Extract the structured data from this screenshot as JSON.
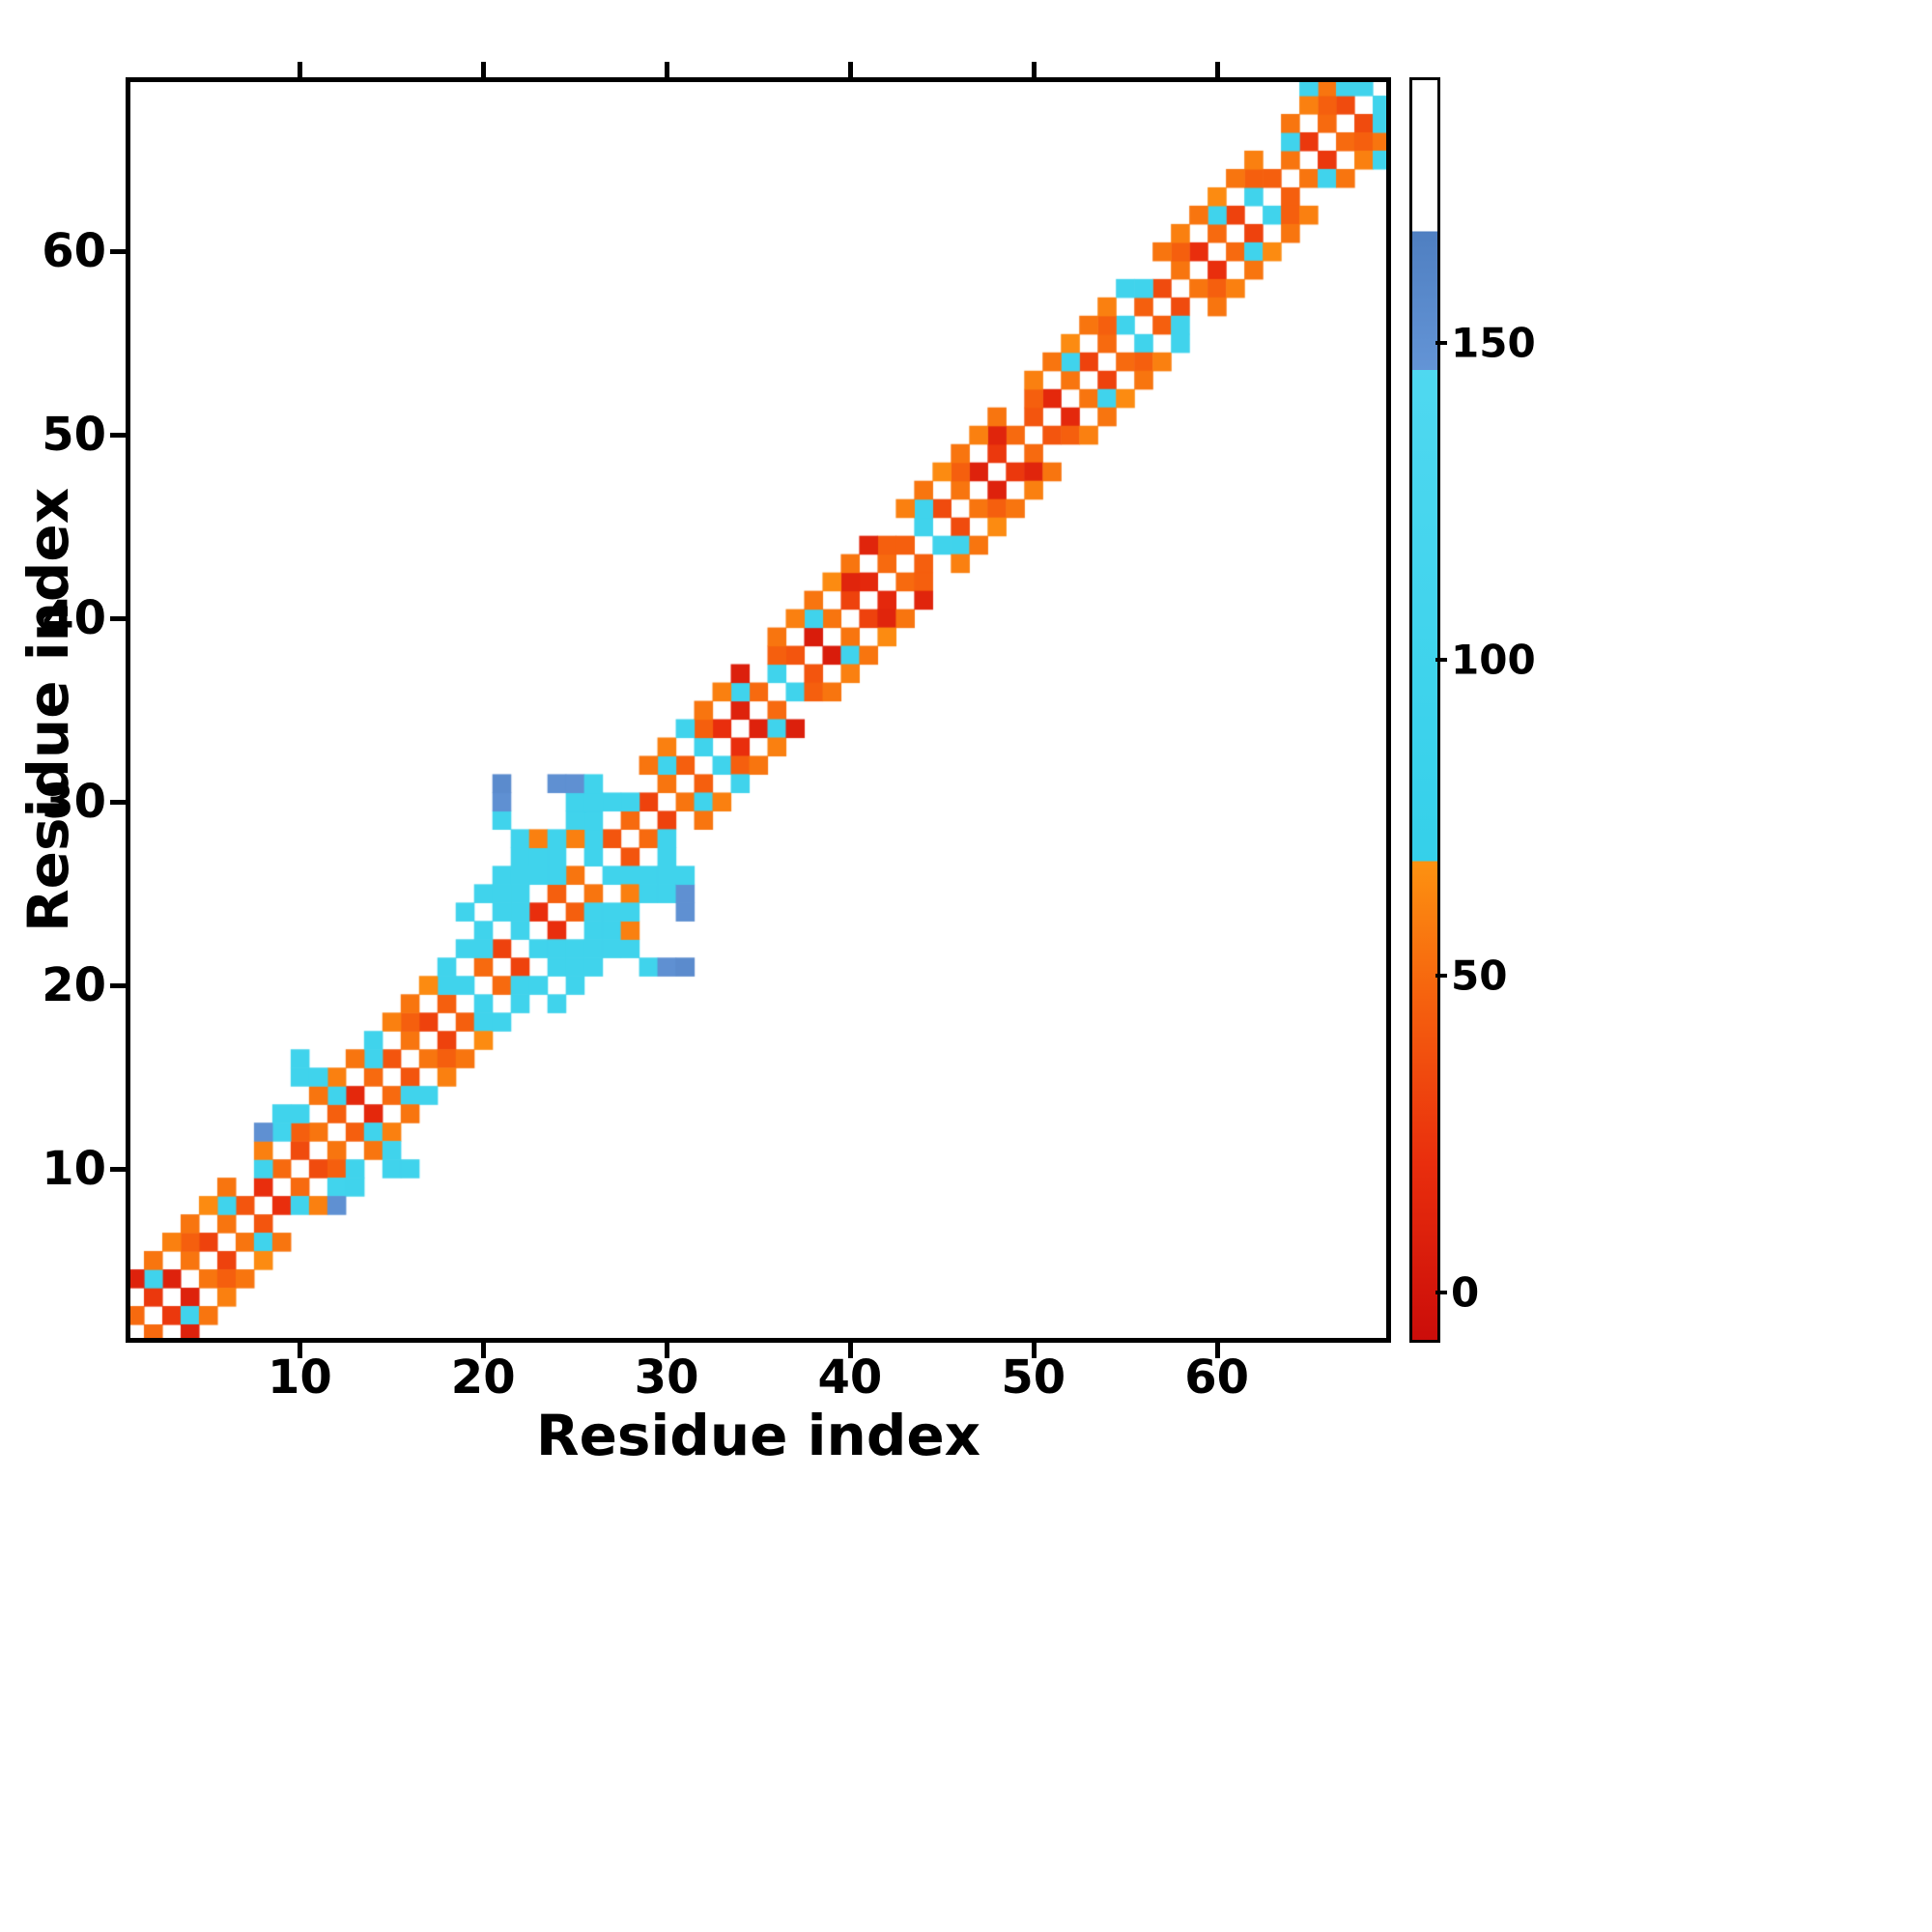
{
  "chart_data": {
    "type": "heatmap",
    "title": "",
    "xlabel": "Residue index",
    "ylabel": "Residue index",
    "n_residues": 69,
    "x_ticks": [
      10,
      20,
      30,
      40,
      50,
      60
    ],
    "y_ticks": [
      10,
      20,
      30,
      40,
      50,
      60
    ],
    "grid": false,
    "background": "#ffffff",
    "symmetric": true,
    "colorbar": {
      "ticks": [
        0,
        50,
        100,
        150
      ],
      "vmin": -8,
      "vmax": 192,
      "position": "right"
    },
    "colormap_stops": [
      [
        -8,
        "#cb0d0a"
      ],
      [
        20,
        "#e92e0d"
      ],
      [
        45,
        "#f55f0e"
      ],
      [
        68,
        "#fd9211"
      ],
      [
        68.01,
        "#35d0ea"
      ],
      [
        146,
        "#4fd8f0"
      ],
      [
        146.01,
        "#6394d6"
      ],
      [
        168,
        "#4f7fc1"
      ],
      [
        168.01,
        "#ffffff"
      ],
      [
        192,
        "#ffffff"
      ]
    ],
    "cells": [
      [
        1,
        2,
        50
      ],
      [
        2,
        3,
        25
      ],
      [
        3,
        4,
        10
      ],
      [
        4,
        5,
        55
      ],
      [
        5,
        6,
        30
      ],
      [
        6,
        7,
        55
      ],
      [
        7,
        8,
        40
      ],
      [
        8,
        9,
        20
      ],
      [
        9,
        10,
        50
      ],
      [
        10,
        11,
        35
      ],
      [
        11,
        12,
        55
      ],
      [
        12,
        13,
        45
      ],
      [
        13,
        14,
        15
      ],
      [
        14,
        15,
        50
      ],
      [
        15,
        16,
        40
      ],
      [
        16,
        17,
        55
      ],
      [
        17,
        18,
        30
      ],
      [
        18,
        19,
        45
      ],
      [
        19,
        20,
        100
      ],
      [
        20,
        21,
        50
      ],
      [
        21,
        22,
        30
      ],
      [
        22,
        23,
        100
      ],
      [
        23,
        24,
        20
      ],
      [
        24,
        25,
        45
      ],
      [
        25,
        26,
        55
      ],
      [
        26,
        27,
        100
      ],
      [
        27,
        28,
        40
      ],
      [
        28,
        29,
        50
      ],
      [
        29,
        30,
        30
      ],
      [
        30,
        31,
        55
      ],
      [
        31,
        32,
        45
      ],
      [
        32,
        33,
        100
      ],
      [
        33,
        34,
        20
      ],
      [
        34,
        35,
        10
      ],
      [
        35,
        36,
        50
      ],
      [
        36,
        37,
        100
      ],
      [
        37,
        38,
        40
      ],
      [
        38,
        39,
        5
      ],
      [
        39,
        40,
        55
      ],
      [
        40,
        41,
        30
      ],
      [
        41,
        42,
        15
      ],
      [
        42,
        43,
        50
      ],
      [
        43,
        44,
        45
      ],
      [
        44,
        45,
        100
      ],
      [
        45,
        46,
        35
      ],
      [
        46,
        47,
        55
      ],
      [
        47,
        48,
        10
      ],
      [
        48,
        49,
        25
      ],
      [
        49,
        50,
        50
      ],
      [
        50,
        51,
        40
      ],
      [
        51,
        52,
        15
      ],
      [
        52,
        53,
        55
      ],
      [
        53,
        54,
        30
      ],
      [
        54,
        55,
        50
      ],
      [
        55,
        56,
        100
      ],
      [
        56,
        57,
        45
      ],
      [
        57,
        58,
        35
      ],
      [
        58,
        59,
        55
      ],
      [
        59,
        60,
        20
      ],
      [
        60,
        61,
        50
      ],
      [
        61,
        62,
        30
      ],
      [
        62,
        63,
        100
      ],
      [
        63,
        64,
        45
      ],
      [
        64,
        65,
        55
      ],
      [
        65,
        66,
        25
      ],
      [
        66,
        67,
        50
      ],
      [
        67,
        68,
        35
      ],
      [
        68,
        69,
        100
      ],
      [
        2,
        4,
        100
      ],
      [
        4,
        6,
        45
      ],
      [
        6,
        8,
        100
      ],
      [
        8,
        10,
        100
      ],
      [
        10,
        12,
        45
      ],
      [
        12,
        14,
        100
      ],
      [
        14,
        16,
        100
      ],
      [
        16,
        18,
        45
      ],
      [
        18,
        20,
        100
      ],
      [
        20,
        22,
        100
      ],
      [
        22,
        24,
        100
      ],
      [
        24,
        26,
        100
      ],
      [
        26,
        28,
        100
      ],
      [
        28,
        30,
        100
      ],
      [
        30,
        32,
        100
      ],
      [
        32,
        34,
        45
      ],
      [
        34,
        36,
        100
      ],
      [
        36,
        38,
        45
      ],
      [
        38,
        40,
        100
      ],
      [
        40,
        42,
        12
      ],
      [
        42,
        44,
        45
      ],
      [
        44,
        46,
        100
      ],
      [
        46,
        48,
        45
      ],
      [
        48,
        50,
        12
      ],
      [
        50,
        52,
        45
      ],
      [
        52,
        54,
        100
      ],
      [
        54,
        56,
        45
      ],
      [
        56,
        58,
        100
      ],
      [
        58,
        60,
        45
      ],
      [
        60,
        62,
        100
      ],
      [
        62,
        64,
        45
      ],
      [
        64,
        66,
        100
      ],
      [
        66,
        68,
        45
      ],
      [
        1,
        4,
        10
      ],
      [
        2,
        5,
        55
      ],
      [
        3,
        6,
        60
      ],
      [
        4,
        7,
        55
      ],
      [
        5,
        8,
        65
      ],
      [
        6,
        9,
        55
      ],
      [
        8,
        11,
        60
      ],
      [
        9,
        12,
        105
      ],
      [
        10,
        13,
        100
      ],
      [
        11,
        14,
        55
      ],
      [
        12,
        15,
        60
      ],
      [
        13,
        16,
        55
      ],
      [
        15,
        18,
        60
      ],
      [
        16,
        19,
        55
      ],
      [
        17,
        20,
        65
      ],
      [
        18,
        21,
        100
      ],
      [
        19,
        22,
        100
      ],
      [
        20,
        23,
        100
      ],
      [
        22,
        25,
        100
      ],
      [
        23,
        26,
        100
      ],
      [
        24,
        27,
        100
      ],
      [
        25,
        28,
        60
      ],
      [
        26,
        29,
        100
      ],
      [
        27,
        30,
        100
      ],
      [
        29,
        32,
        55
      ],
      [
        30,
        33,
        60
      ],
      [
        31,
        34,
        100
      ],
      [
        32,
        35,
        55
      ],
      [
        33,
        36,
        60
      ],
      [
        34,
        37,
        8
      ],
      [
        36,
        39,
        55
      ],
      [
        37,
        40,
        60
      ],
      [
        38,
        41,
        55
      ],
      [
        39,
        42,
        65
      ],
      [
        40,
        43,
        55
      ],
      [
        41,
        44,
        12
      ],
      [
        43,
        46,
        60
      ],
      [
        44,
        47,
        55
      ],
      [
        45,
        48,
        65
      ],
      [
        46,
        49,
        55
      ],
      [
        47,
        50,
        60
      ],
      [
        48,
        51,
        55
      ],
      [
        50,
        53,
        60
      ],
      [
        51,
        54,
        55
      ],
      [
        52,
        55,
        65
      ],
      [
        53,
        56,
        55
      ],
      [
        54,
        57,
        60
      ],
      [
        55,
        58,
        100
      ],
      [
        57,
        60,
        55
      ],
      [
        58,
        61,
        60
      ],
      [
        59,
        62,
        55
      ],
      [
        60,
        63,
        65
      ],
      [
        61,
        64,
        55
      ],
      [
        62,
        65,
        60
      ],
      [
        64,
        67,
        55
      ],
      [
        65,
        68,
        60
      ],
      [
        66,
        69,
        55
      ],
      [
        8,
        12,
        150
      ],
      [
        9,
        13,
        100
      ],
      [
        10,
        15,
        100
      ],
      [
        11,
        15,
        100
      ],
      [
        10,
        16,
        100
      ],
      [
        14,
        17,
        100
      ],
      [
        19,
        24,
        100
      ],
      [
        20,
        25,
        100
      ],
      [
        21,
        24,
        100
      ],
      [
        21,
        25,
        100
      ],
      [
        21,
        26,
        100
      ],
      [
        22,
        26,
        100
      ],
      [
        22,
        27,
        100
      ],
      [
        22,
        28,
        100
      ],
      [
        23,
        27,
        100
      ],
      [
        23,
        28,
        60
      ],
      [
        24,
        28,
        100
      ],
      [
        25,
        29,
        100
      ],
      [
        25,
        30,
        100
      ],
      [
        26,
        30,
        100
      ],
      [
        21,
        29,
        100
      ],
      [
        21,
        30,
        150
      ],
      [
        21,
        31,
        155
      ],
      [
        24,
        31,
        150
      ],
      [
        25,
        31,
        150
      ],
      [
        26,
        31,
        100
      ],
      [
        65,
        69,
        100
      ],
      [
        67,
        69,
        100
      ]
    ]
  }
}
